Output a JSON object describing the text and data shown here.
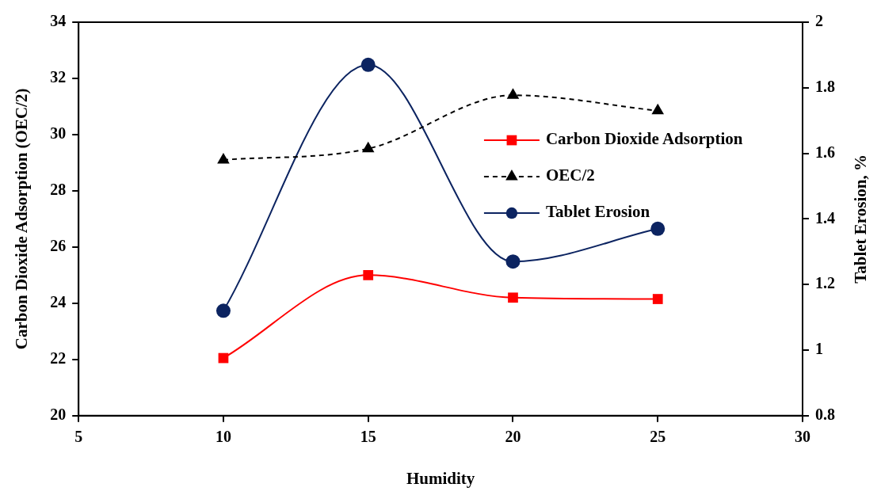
{
  "chart_data": {
    "type": "line",
    "xlabel": "Humidity",
    "ylabel": "Carbon Dioxide Adsorption (OEC/2)",
    "y2label": "Tablet Erosion, %",
    "x": [
      10,
      15,
      20,
      25
    ],
    "series": [
      {
        "name": "Carbon Dioxide Adsorption",
        "color": "#ff0000",
        "values": [
          22.05,
          25.0,
          24.2,
          24.15
        ],
        "marker": "square",
        "line_style": "solid"
      },
      {
        "name": "OEC/2",
        "color": "#000000",
        "values": [
          29.1,
          29.5,
          31.4,
          30.85
        ],
        "marker": "triangle",
        "line_style": "dashed"
      },
      {
        "name": "Tablet Erosion",
        "color": "#0c2461",
        "values": [
          1.12,
          1.87,
          1.27,
          1.37
        ],
        "marker": "circle",
        "line_style": "solid",
        "axis": "y2"
      }
    ],
    "xlim": [
      5,
      30
    ],
    "xticks": [
      5,
      10,
      15,
      20,
      25,
      30
    ],
    "ylim": [
      20,
      34
    ],
    "yticks": [
      20,
      22,
      24,
      26,
      28,
      30,
      32,
      34
    ],
    "y2lim": [
      0.8,
      2
    ],
    "y2ticks": [
      0.8,
      1,
      1.2,
      1.4,
      1.6,
      1.8,
      2
    ],
    "grid": false,
    "legend": "right"
  }
}
